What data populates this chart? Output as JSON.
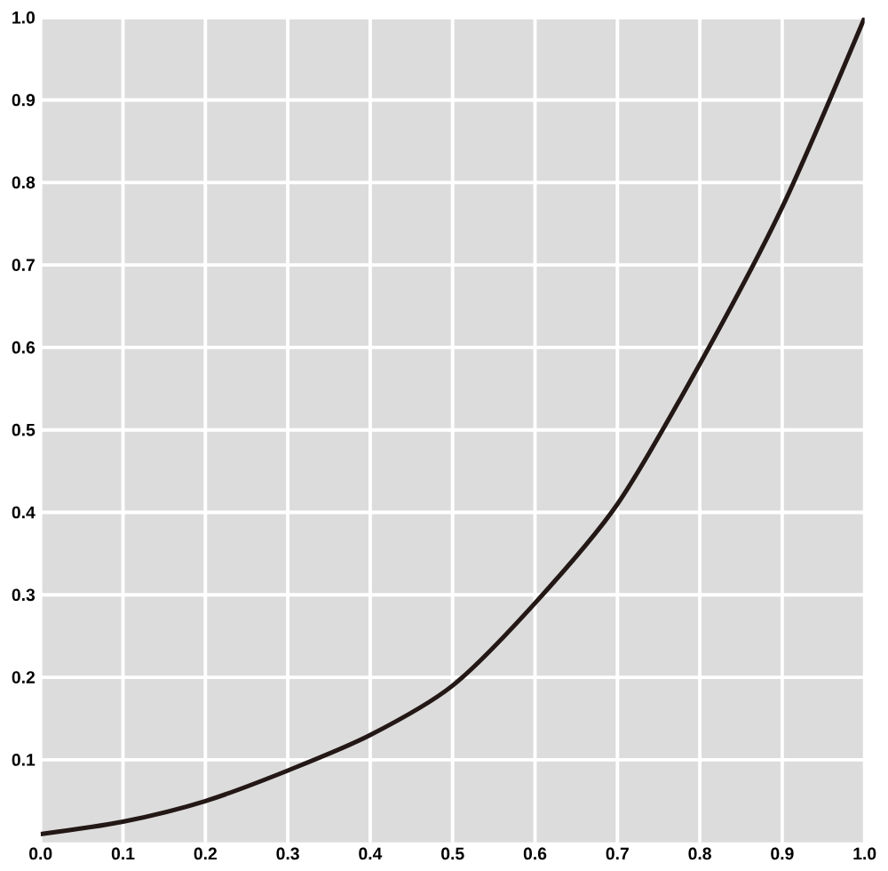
{
  "chart_data": {
    "type": "line",
    "x": [
      0,
      0.1,
      0.2,
      0.3,
      0.4,
      0.5,
      0.6,
      0.7,
      0.8,
      0.9,
      1.0
    ],
    "series": [
      {
        "color": "#231815",
        "values": [
          0.01,
          0.025,
          0.05,
          0.087,
          0.13,
          0.19,
          0.29,
          0.41,
          0.58,
          0.77,
          1.0
        ]
      }
    ],
    "xlim": [
      0,
      1
    ],
    "ylim": [
      0,
      1
    ],
    "xticks": [
      {
        "value": 0,
        "label": "0.0"
      },
      0.1,
      0.2,
      0.3,
      0.4,
      0.5,
      0.6,
      0.7,
      0.8,
      0.9,
      {
        "value": 1,
        "label": "1.0"
      }
    ],
    "yticks": [
      0.1,
      0.2,
      0.3,
      0.4,
      0.5,
      0.6,
      0.7,
      0.8,
      0.9,
      {
        "value": 1,
        "label": "1.0"
      }
    ],
    "grid": true
  }
}
